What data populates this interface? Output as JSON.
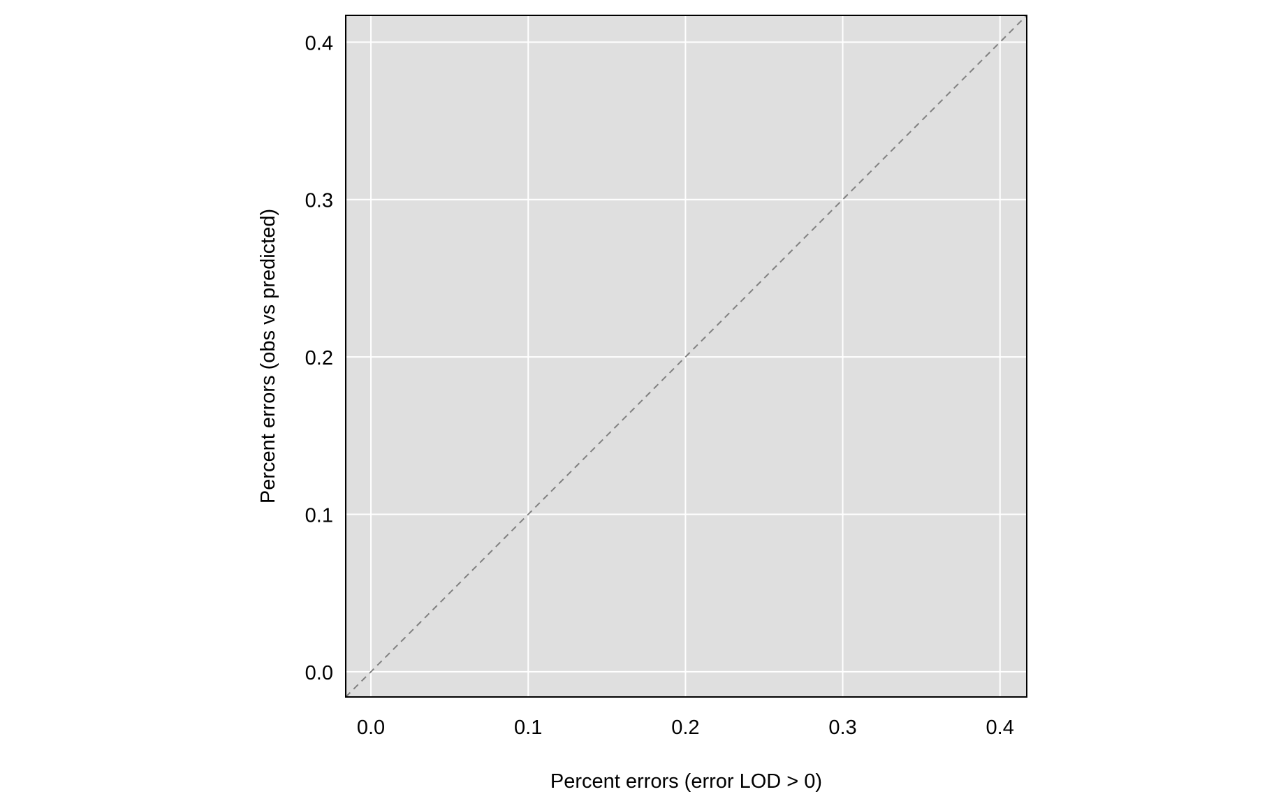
{
  "chart_data": {
    "type": "scatter",
    "title": "",
    "xlabel": "Percent errors (error LOD > 0)",
    "ylabel": "Percent errors (obs vs predicted)",
    "xlim": [
      -0.016,
      0.417
    ],
    "ylim": [
      -0.016,
      0.417
    ],
    "x_ticks": [
      0.0,
      0.1,
      0.2,
      0.3,
      0.4
    ],
    "y_ticks": [
      0.0,
      0.1,
      0.2,
      0.3,
      0.4
    ],
    "x_tick_labels": [
      "0.0",
      "0.1",
      "0.2",
      "0.3",
      "0.4"
    ],
    "y_tick_labels": [
      "0.0",
      "0.1",
      "0.2",
      "0.3",
      "0.4"
    ],
    "grid": true,
    "series": [],
    "reference_line": {
      "style": "dashed",
      "slope": 1,
      "intercept": 0
    },
    "colors": {
      "panel_background": "#dfdfdf",
      "grid": "#ffffff",
      "reference_line": "#808080",
      "border": "#000000"
    }
  }
}
